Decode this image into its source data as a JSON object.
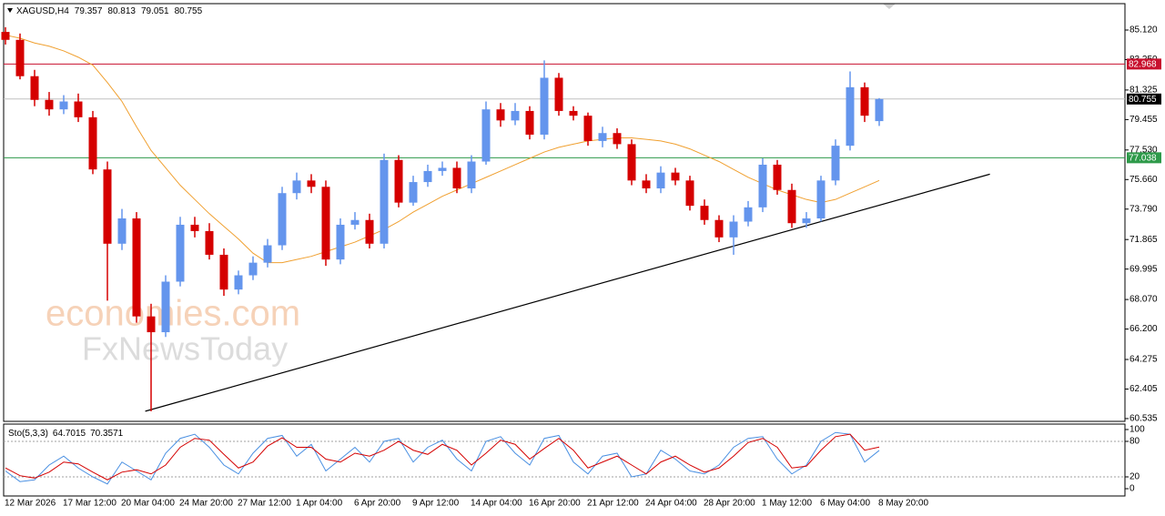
{
  "chart_data": [
    {
      "type": "candlestick",
      "symbol": "XAGUSD,H4",
      "categories": [
        "12 Mar 2026",
        null,
        null,
        null,
        "17 Mar 12:00",
        null,
        null,
        null,
        "20 Mar 04:00",
        null,
        null,
        null,
        "24 Mar 20:00",
        null,
        null,
        null,
        "27 Mar 12:00",
        null,
        null,
        null,
        "1 Apr 04:00",
        null,
        null,
        null,
        "6 Apr 20:00",
        null,
        null,
        null,
        "9 Apr 12:00",
        null,
        null,
        null,
        "14 Apr 04:00",
        null,
        null,
        null,
        "16 Apr 20:00",
        null,
        null,
        null,
        "21 Apr 12:00",
        null,
        null,
        null,
        "24 Apr 04:00",
        null,
        null,
        null,
        "28 Apr 20:00",
        null,
        null,
        null,
        "1 May 12:00",
        null,
        null,
        null,
        "6 May 04:00",
        null,
        null,
        null,
        "8 May 20:00"
      ],
      "open": [
        85.0,
        84.5,
        82.2,
        80.7,
        80.1,
        80.6,
        79.6,
        76.3,
        71.6,
        73.2,
        67.0,
        66.0,
        69.2,
        72.8,
        72.4,
        70.9,
        68.7,
        69.6,
        70.4,
        71.5,
        74.8,
        75.6,
        75.2,
        70.6,
        72.8,
        73.1,
        71.6,
        76.9,
        74.2,
        75.5,
        76.2,
        76.4,
        75.1,
        76.8,
        80.1,
        79.4,
        80.0,
        78.5,
        82.1,
        80.0,
        79.7,
        78.1,
        78.6,
        77.9,
        75.6,
        75.1,
        76.1,
        75.6,
        74.0,
        73.1,
        72.0,
        73.0,
        73.9,
        76.6,
        75.0,
        72.9,
        73.2,
        75.6,
        77.8,
        81.5,
        79.357
      ],
      "high": [
        85.3,
        84.9,
        82.6,
        81.2,
        81.0,
        81.1,
        80.0,
        76.8,
        73.8,
        73.6,
        67.8,
        69.6,
        73.3,
        73.3,
        72.9,
        71.3,
        69.9,
        70.8,
        71.9,
        75.2,
        76.1,
        76.0,
        75.6,
        73.2,
        73.6,
        73.5,
        77.3,
        77.2,
        75.9,
        76.6,
        76.8,
        76.8,
        77.2,
        80.6,
        80.5,
        80.5,
        80.3,
        83.2,
        82.4,
        80.3,
        79.9,
        79.0,
        78.9,
        78.2,
        76.0,
        76.5,
        76.4,
        75.9,
        74.4,
        73.4,
        73.4,
        74.3,
        77.0,
        76.9,
        75.4,
        73.6,
        75.9,
        78.2,
        82.5,
        81.8,
        80.813
      ],
      "low": [
        84.2,
        82.0,
        80.3,
        79.7,
        79.8,
        79.3,
        76.0,
        68.0,
        71.2,
        66.6,
        61.0,
        65.7,
        68.9,
        72.0,
        70.6,
        68.3,
        68.4,
        69.3,
        70.1,
        71.2,
        74.4,
        74.8,
        70.2,
        70.3,
        72.5,
        71.3,
        71.3,
        73.9,
        74.0,
        75.2,
        75.9,
        74.8,
        74.8,
        76.6,
        79.0,
        79.1,
        78.2,
        78.2,
        79.7,
        79.4,
        77.8,
        77.7,
        77.6,
        75.3,
        74.8,
        74.8,
        75.3,
        73.7,
        72.8,
        71.7,
        70.9,
        72.7,
        73.6,
        74.7,
        72.6,
        72.6,
        73.0,
        75.3,
        77.5,
        79.3,
        79.051
      ],
      "close": [
        84.5,
        82.2,
        80.7,
        80.1,
        80.6,
        79.6,
        76.3,
        71.6,
        73.2,
        67.0,
        66.0,
        69.2,
        72.8,
        72.4,
        70.9,
        68.7,
        69.6,
        70.4,
        71.5,
        74.8,
        75.6,
        75.2,
        70.6,
        72.8,
        73.1,
        71.6,
        76.9,
        74.2,
        75.5,
        76.2,
        76.4,
        75.1,
        76.8,
        80.1,
        79.4,
        80.0,
        78.5,
        82.1,
        80.0,
        79.7,
        78.1,
        78.6,
        77.9,
        75.6,
        75.1,
        76.1,
        75.6,
        74.0,
        73.1,
        72.0,
        73.0,
        73.9,
        76.6,
        75.0,
        72.9,
        73.2,
        75.6,
        77.8,
        81.5,
        79.7,
        80.755
      ],
      "up_color": "#6495ed",
      "down_color": "#d50000",
      "ma": {
        "color": "#f0a030",
        "values": [
          84.8,
          84.6,
          84.3,
          84.1,
          83.8,
          83.4,
          82.9,
          81.8,
          80.6,
          79.0,
          77.5,
          76.4,
          75.3,
          74.4,
          73.5,
          72.7,
          71.9,
          71.0,
          70.4,
          70.4,
          70.6,
          70.8,
          71.1,
          71.4,
          71.7,
          72.1,
          72.5,
          73.0,
          73.6,
          74.1,
          74.6,
          75.0,
          75.4,
          75.8,
          76.2,
          76.6,
          77.0,
          77.4,
          77.7,
          77.9,
          78.1,
          78.2,
          78.3,
          78.3,
          78.2,
          78.1,
          77.9,
          77.6,
          77.2,
          76.8,
          76.3,
          75.8,
          75.4,
          75.0,
          74.7,
          74.4,
          74.2,
          74.4,
          74.8,
          75.2,
          75.6
        ]
      },
      "levels": [
        {
          "value": 82.968,
          "color": "#c8102e"
        },
        {
          "value": 77.038,
          "color": "#2e9a4a"
        }
      ],
      "trendline": {
        "x": [
          9.6,
          67.6
        ],
        "y": [
          61.0,
          76.0
        ],
        "color": "#000000"
      },
      "ylim": [
        60.36,
        86.79
      ],
      "yticks": [
        {
          "value": 85.12,
          "label": "85.120"
        },
        {
          "value": 83.25,
          "label": "83.250"
        },
        {
          "value": 81.325,
          "label": "81.325"
        },
        {
          "value": 79.455,
          "label": "79.455"
        },
        {
          "value": 77.53,
          "label": "77.530"
        },
        {
          "value": 75.66,
          "label": "75.660"
        },
        {
          "value": 73.79,
          "label": "73.790"
        },
        {
          "value": 71.865,
          "label": "71.865"
        },
        {
          "value": 69.995,
          "label": "69.995"
        },
        {
          "value": 68.07,
          "label": "68.070"
        },
        {
          "value": 66.2,
          "label": "66.200"
        },
        {
          "value": 64.275,
          "label": "64.275"
        },
        {
          "value": 62.405,
          "label": "62.405"
        },
        {
          "value": 60.535,
          "label": "60.535"
        }
      ],
      "watermark": {
        "brand": "economies.com",
        "sub": "FxNewsToday"
      }
    },
    {
      "type": "line",
      "title": "Sto(5,3,3)",
      "series": [
        {
          "color": "#4a90e2",
          "values": [
            30,
            12,
            15,
            40,
            55,
            35,
            20,
            8,
            45,
            30,
            15,
            60,
            85,
            92,
            70,
            40,
            25,
            60,
            85,
            90,
            55,
            75,
            30,
            50,
            70,
            45,
            80,
            85,
            45,
            70,
            82,
            50,
            30,
            80,
            88,
            60,
            40,
            85,
            90,
            45,
            25,
            55,
            60,
            20,
            25,
            65,
            50,
            30,
            25,
            40,
            70,
            85,
            88,
            50,
            25,
            40,
            80,
            95,
            92,
            45,
            64.7015
          ]
        },
        {
          "color": "#d40000",
          "values": [
            35,
            22,
            18,
            28,
            45,
            42,
            28,
            15,
            28,
            32,
            25,
            40,
            70,
            85,
            82,
            58,
            35,
            45,
            72,
            86,
            70,
            70,
            50,
            45,
            60,
            55,
            65,
            80,
            65,
            58,
            75,
            65,
            40,
            60,
            82,
            75,
            50,
            68,
            85,
            65,
            35,
            45,
            55,
            40,
            25,
            45,
            55,
            40,
            28,
            35,
            55,
            78,
            85,
            70,
            35,
            38,
            65,
            88,
            92,
            65,
            70.3571
          ]
        }
      ],
      "levels": [
        80,
        20
      ],
      "ylim": [
        -12.3,
        109.2
      ],
      "yticks": [
        100,
        80,
        20,
        0
      ]
    }
  ]
}
